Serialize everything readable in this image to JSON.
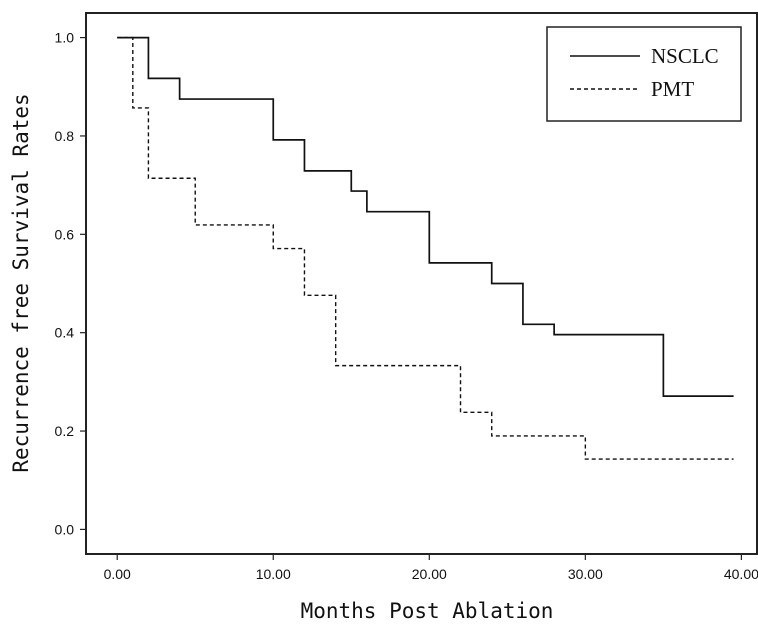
{
  "chart_data": {
    "type": "line",
    "title": "",
    "xlabel": "Months Post Ablation",
    "ylabel": "Recurrence free Survival Rates",
    "xlim": [
      -2,
      41
    ],
    "ylim": [
      -0.05,
      1.05
    ],
    "x_ticks": [
      0,
      10,
      20,
      30,
      40
    ],
    "x_tick_labels": [
      "0.00",
      "10.00",
      "20.00",
      "30.00",
      "40.00"
    ],
    "y_ticks": [
      0.0,
      0.2,
      0.4,
      0.6,
      0.8,
      1.0
    ],
    "y_tick_labels": [
      "0.0",
      "0.2",
      "0.4",
      "0.6",
      "0.8",
      "1.0"
    ],
    "grid": false,
    "legend_position": "top-right",
    "series": [
      {
        "name": "NSCLC",
        "line_style": "solid",
        "color": "#111111",
        "steps": [
          [
            0,
            1.0
          ],
          [
            2,
            0.917
          ],
          [
            4,
            0.875
          ],
          [
            10,
            0.792
          ],
          [
            12,
            0.729
          ],
          [
            15,
            0.688
          ],
          [
            16,
            0.646
          ],
          [
            20,
            0.542
          ],
          [
            24,
            0.5
          ],
          [
            26,
            0.417
          ],
          [
            28,
            0.396
          ],
          [
            35,
            0.271
          ],
          [
            39.5,
            0.271
          ]
        ]
      },
      {
        "name": "PMT",
        "line_style": "dashed",
        "color": "#111111",
        "steps": [
          [
            0,
            1.0
          ],
          [
            1,
            0.857
          ],
          [
            2,
            0.714
          ],
          [
            5,
            0.619
          ],
          [
            10,
            0.571
          ],
          [
            12,
            0.476
          ],
          [
            14,
            0.333
          ],
          [
            22,
            0.238
          ],
          [
            24,
            0.19
          ],
          [
            30,
            0.143
          ],
          [
            39.5,
            0.143
          ]
        ]
      }
    ]
  }
}
